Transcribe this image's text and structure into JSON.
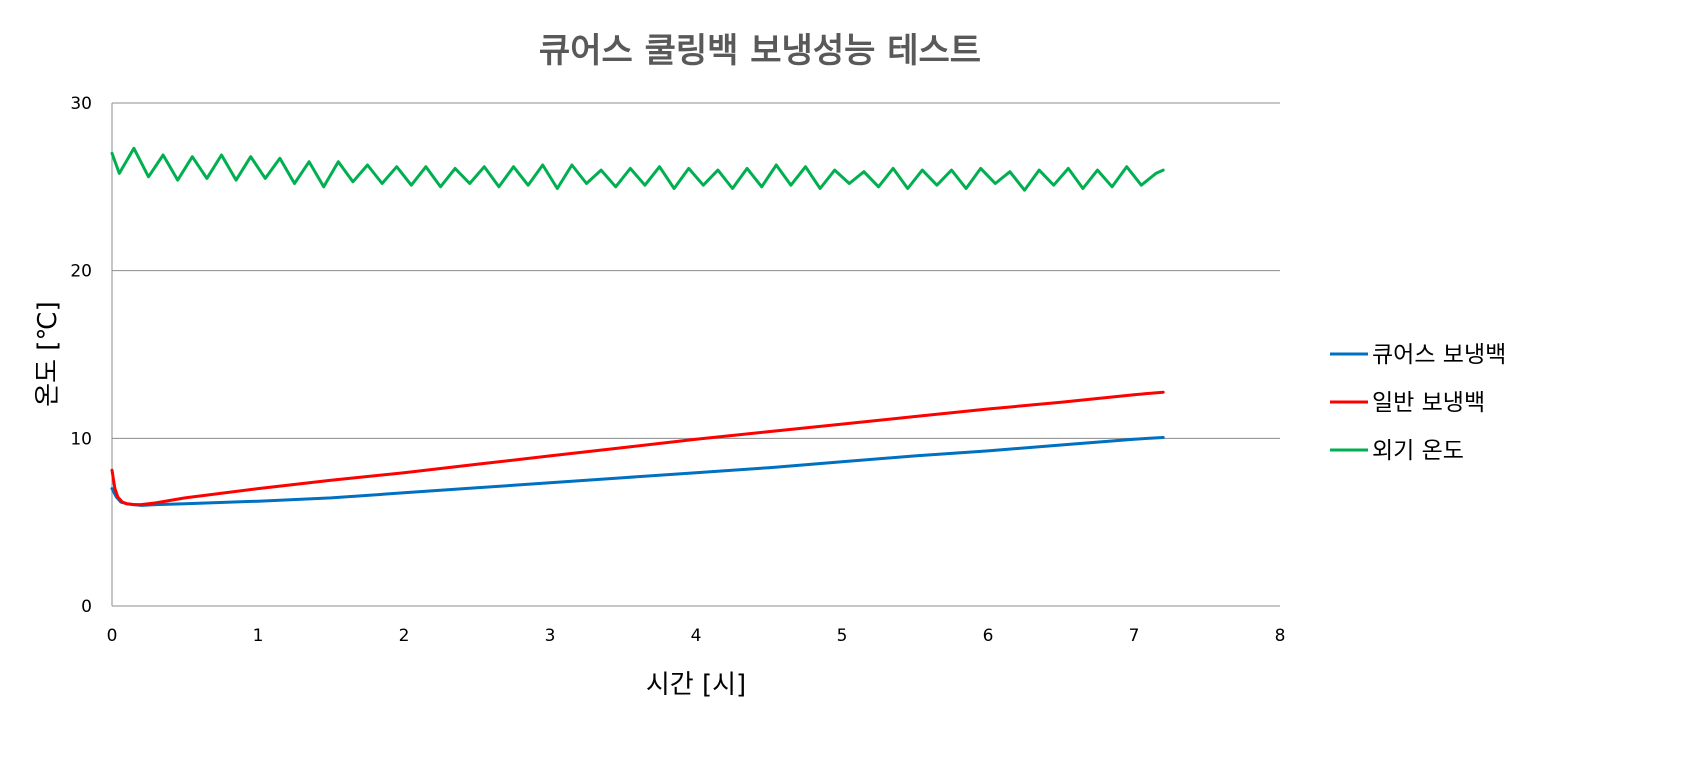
{
  "chart_data": {
    "type": "line",
    "title": "큐어스 쿨링백 보냉성능 테스트",
    "xlabel": "시간 [시]",
    "ylabel": "온도 [℃]",
    "xlim": [
      0,
      8
    ],
    "ylim": [
      0,
      30
    ],
    "x_ticks": [
      "0",
      "1",
      "2",
      "3",
      "4",
      "5",
      "6",
      "7",
      "8"
    ],
    "y_ticks": [
      "0",
      "10",
      "20",
      "30"
    ],
    "grid": "horizontal",
    "legend_position": "right",
    "series": [
      {
        "name": "큐어스 보냉백",
        "color": "#0070c0",
        "x": [
          0,
          0.03,
          0.06,
          0.1,
          0.15,
          0.2,
          0.3,
          0.5,
          1,
          1.5,
          2,
          2.5,
          3,
          3.5,
          4,
          4.5,
          5,
          5.5,
          6,
          6.5,
          7,
          7.2
        ],
        "values": [
          7.0,
          6.5,
          6.2,
          6.1,
          6.05,
          6.0,
          6.05,
          6.1,
          6.25,
          6.45,
          6.75,
          7.05,
          7.35,
          7.65,
          7.95,
          8.25,
          8.6,
          8.95,
          9.25,
          9.6,
          9.95,
          10.05
        ]
      },
      {
        "name": "일반 보냉백",
        "color": "#ff0000",
        "x": [
          0,
          0.02,
          0.04,
          0.07,
          0.1,
          0.15,
          0.2,
          0.3,
          0.5,
          1,
          1.5,
          2,
          2.5,
          3,
          3.5,
          4,
          4.5,
          5,
          5.5,
          6,
          6.5,
          7,
          7.2
        ],
        "values": [
          8.1,
          7.0,
          6.5,
          6.2,
          6.1,
          6.05,
          6.05,
          6.15,
          6.45,
          7.0,
          7.5,
          7.95,
          8.45,
          8.95,
          9.45,
          9.95,
          10.4,
          10.85,
          11.3,
          11.75,
          12.15,
          12.6,
          12.75
        ]
      },
      {
        "name": "외기 온도",
        "color": "#00b050",
        "x": [
          0,
          0.05,
          0.15,
          0.25,
          0.35,
          0.45,
          0.55,
          0.65,
          0.75,
          0.85,
          0.95,
          1.05,
          1.15,
          1.25,
          1.35,
          1.45,
          1.55,
          1.65,
          1.75,
          1.85,
          1.95,
          2.05,
          2.15,
          2.25,
          2.35,
          2.45,
          2.55,
          2.65,
          2.75,
          2.85,
          2.95,
          3.05,
          3.15,
          3.25,
          3.35,
          3.45,
          3.55,
          3.65,
          3.75,
          3.85,
          3.95,
          4.05,
          4.15,
          4.25,
          4.35,
          4.45,
          4.55,
          4.65,
          4.75,
          4.85,
          4.95,
          5.05,
          5.15,
          5.25,
          5.35,
          5.45,
          5.55,
          5.65,
          5.75,
          5.85,
          5.95,
          6.05,
          6.15,
          6.25,
          6.35,
          6.45,
          6.55,
          6.65,
          6.75,
          6.85,
          6.95,
          7.05,
          7.15,
          7.2
        ],
        "values": [
          27.0,
          25.8,
          27.3,
          25.6,
          26.9,
          25.4,
          26.8,
          25.5,
          26.9,
          25.4,
          26.8,
          25.5,
          26.7,
          25.2,
          26.5,
          25.0,
          26.5,
          25.3,
          26.3,
          25.2,
          26.2,
          25.1,
          26.2,
          25.0,
          26.1,
          25.2,
          26.2,
          25.0,
          26.2,
          25.1,
          26.3,
          24.9,
          26.3,
          25.2,
          26.0,
          25.0,
          26.1,
          25.1,
          26.2,
          24.9,
          26.1,
          25.1,
          26.0,
          24.9,
          26.1,
          25.0,
          26.3,
          25.1,
          26.2,
          24.9,
          26.0,
          25.2,
          25.9,
          25.0,
          26.1,
          24.9,
          26.0,
          25.1,
          26.0,
          24.9,
          26.1,
          25.2,
          25.9,
          24.8,
          26.0,
          25.1,
          26.1,
          24.9,
          26.0,
          25.0,
          26.2,
          25.1,
          25.8,
          26.0
        ]
      }
    ]
  }
}
